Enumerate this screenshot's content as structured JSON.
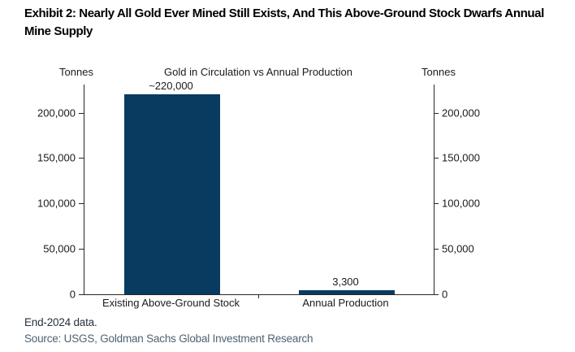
{
  "exhibit": {
    "title": "Exhibit 2: Nearly All Gold Ever Mined Still Exists, And This Above-Ground Stock Dwarfs Annual Mine Supply"
  },
  "chart_data": {
    "type": "bar",
    "title": "Gold in Circulation vs Annual Production",
    "left_axis_unit": "Tonnes",
    "right_axis_unit": "Tonnes",
    "categories": [
      "Existing Above-Ground Stock",
      "Annual Production"
    ],
    "values": [
      220000,
      3300
    ],
    "value_labels": [
      "~220,000",
      "3,300"
    ],
    "y_ticks": [
      0,
      50000,
      100000,
      150000,
      200000
    ],
    "y_tick_labels": [
      "0",
      "50,000",
      "100,000",
      "150,000",
      "200,000"
    ],
    "ylim": [
      0,
      231000
    ],
    "ylabel": "Tonnes",
    "xlabel": "",
    "grid": false,
    "legend_position": "none",
    "bar_color": "#093a5f",
    "axis_color": "#262626"
  },
  "footer": {
    "note": "End-2024 data.",
    "source": "Source: USGS, Goldman Sachs Global Investment Research"
  }
}
